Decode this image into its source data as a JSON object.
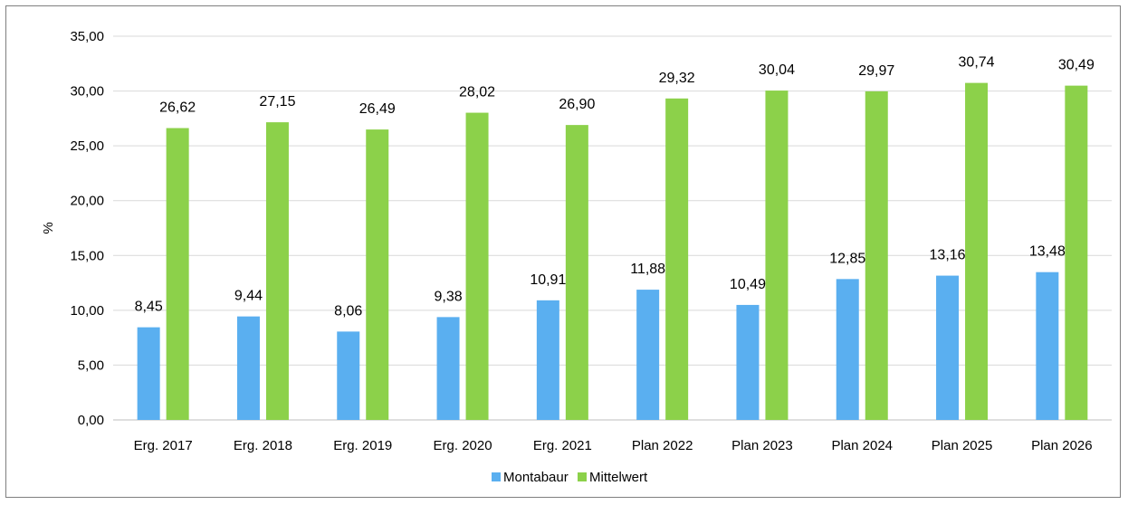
{
  "chart_data": {
    "type": "bar",
    "title": "",
    "xlabel": "",
    "ylabel": "%",
    "ylim": [
      0,
      35
    ],
    "y_ticks": [
      "0,00",
      "5,00",
      "10,00",
      "15,00",
      "20,00",
      "25,00",
      "30,00",
      "35,00"
    ],
    "categories": [
      "Erg. 2017",
      "Erg. 2018",
      "Erg. 2019",
      "Erg. 2020",
      "Erg. 2021",
      "Plan 2022",
      "Plan 2023",
      "Plan 2024",
      "Plan 2025",
      "Plan 2026"
    ],
    "series": [
      {
        "name": "Montabaur",
        "color": "#5aaff0",
        "values": [
          8.45,
          9.44,
          8.06,
          9.38,
          10.91,
          11.88,
          10.49,
          12.85,
          13.16,
          13.48
        ],
        "labels": [
          "8,45",
          "9,44",
          "8,06",
          "9,38",
          "10,91",
          "11,88",
          "10,49",
          "12,85",
          "13,16",
          "13,48"
        ]
      },
      {
        "name": "Mittelwert",
        "color": "#8cd14a",
        "values": [
          26.62,
          27.15,
          26.49,
          28.02,
          26.9,
          29.32,
          30.04,
          29.97,
          30.74,
          30.49
        ],
        "labels": [
          "26,62",
          "27,15",
          "26,49",
          "28,02",
          "26,90",
          "29,32",
          "30,04",
          "29,97",
          "30,74",
          "30,49"
        ]
      }
    ],
    "grid": true,
    "legend": "bottom-center"
  }
}
